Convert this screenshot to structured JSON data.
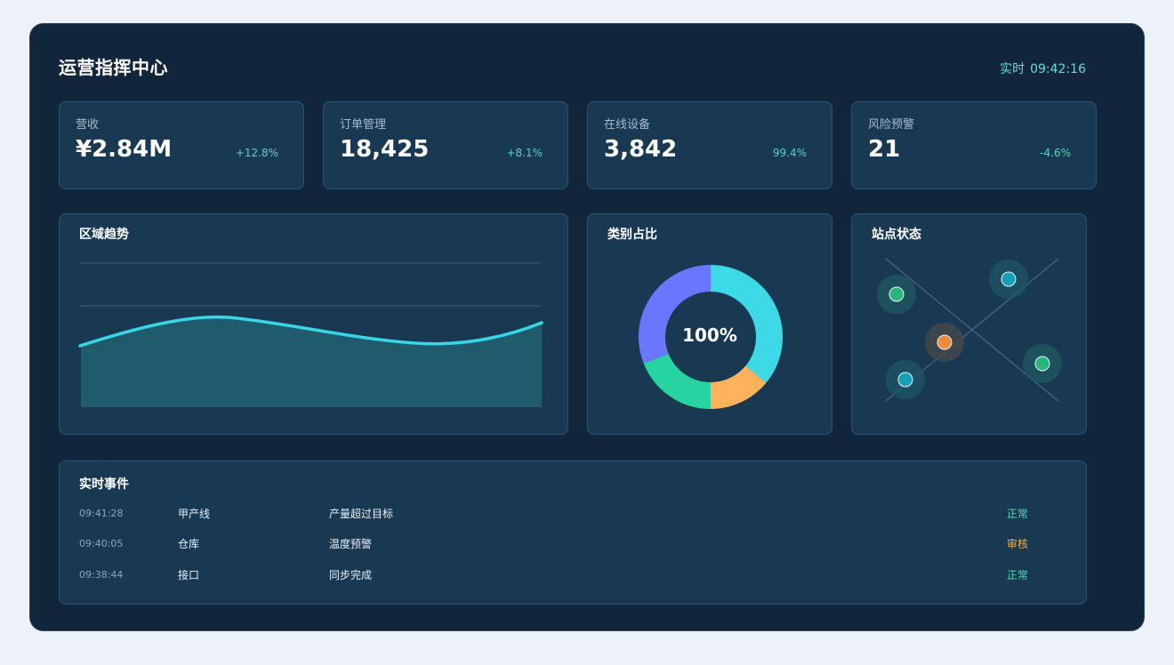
{
  "header": {
    "title": "运营指挥中心",
    "clock_label": "实时",
    "clock_time": "09:42:16"
  },
  "kpis": [
    {
      "label": "营收",
      "value": "¥2.84M",
      "delta": "+12.8%"
    },
    {
      "label": "订单管理",
      "value": "18,425",
      "delta": "+8.1%"
    },
    {
      "label": "在线设备",
      "value": "3,842",
      "delta": "99.4%"
    },
    {
      "label": "风险预警",
      "value": "21",
      "delta": "-4.6%"
    }
  ],
  "trend": {
    "title": "区域趋势"
  },
  "category": {
    "title": "类别占比",
    "center_label": "100%",
    "segments": [
      {
        "value": 36,
        "color": "#3dd9e6"
      },
      {
        "value": 14,
        "color": "#ffb25c"
      },
      {
        "value": 19,
        "color": "#26d3a1"
      },
      {
        "value": 31,
        "color": "#6b76ff"
      }
    ]
  },
  "sites": {
    "title": "站点状态",
    "nodes": [
      {
        "color": "#27b57e"
      },
      {
        "color": "#169fb7"
      },
      {
        "color": "#f08a3c"
      },
      {
        "color": "#169fb7"
      },
      {
        "color": "#27b57e"
      }
    ]
  },
  "events": {
    "title": "实时事件",
    "rows": [
      {
        "time": "09:41:28",
        "source": "甲产线",
        "message": "产量超过目标",
        "status": "正常",
        "status_color": "#56d6b4"
      },
      {
        "time": "09:40:05",
        "source": "仓库",
        "message": "温度预警",
        "status": "审核",
        "status_color": "#f2ab4e"
      },
      {
        "time": "09:38:44",
        "source": "接口",
        "message": "同步完成",
        "status": "正常",
        "status_color": "#56d6b4"
      }
    ]
  }
}
